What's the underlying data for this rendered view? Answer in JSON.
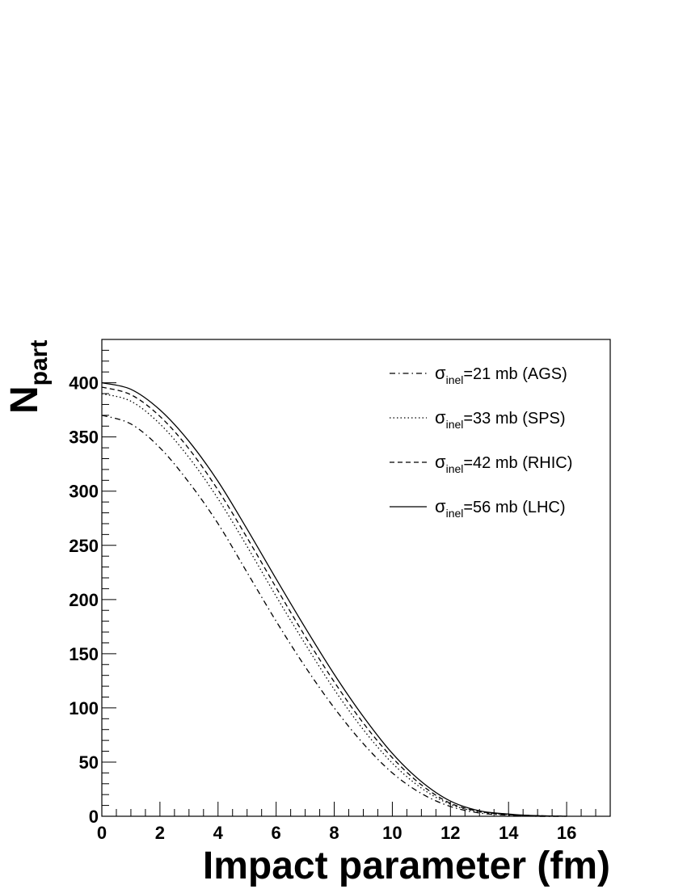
{
  "chart_data": {
    "type": "line",
    "xlabel": "Impact parameter (fm)",
    "ylabel": {
      "main": "N",
      "sub": "part"
    },
    "xlim": [
      0,
      17.5
    ],
    "ylim": [
      0,
      440
    ],
    "x_ticks": [
      0,
      2,
      4,
      6,
      8,
      10,
      12,
      14,
      16
    ],
    "y_ticks": [
      0,
      50,
      100,
      150,
      200,
      250,
      300,
      350,
      400
    ],
    "legend_position": "top-right",
    "series": [
      {
        "name": "σinel=21 mb (AGS)",
        "legend": {
          "sym": "σ",
          "sub": "inel",
          "rest": "=21 mb (AGS)"
        },
        "dash": "dashdot",
        "x": [
          0,
          1,
          2,
          3,
          4,
          5,
          6,
          7,
          8,
          9,
          10,
          11,
          12,
          13,
          14,
          15,
          16
        ],
        "y": [
          370,
          362,
          340,
          308,
          270,
          225,
          180,
          138,
          100,
          67,
          40,
          21,
          9,
          3,
          1,
          0,
          0
        ]
      },
      {
        "name": "σinel=33 mb (SPS)",
        "legend": {
          "sym": "σ",
          "sub": "inel",
          "rest": "=33 mb (SPS)"
        },
        "dash": "dotted",
        "x": [
          0,
          1,
          2,
          3,
          4,
          5,
          6,
          7,
          8,
          9,
          10,
          11,
          12,
          13,
          14,
          15,
          16
        ],
        "y": [
          390,
          383,
          362,
          331,
          293,
          249,
          203,
          159,
          117,
          80,
          49,
          26,
          11,
          4,
          1.5,
          0.5,
          0
        ]
      },
      {
        "name": "σinel=42 mb (RHIC)",
        "legend": {
          "sym": "σ",
          "sub": "inel",
          "rest": "=42 mb (RHIC)"
        },
        "dash": "dashed",
        "x": [
          0,
          1,
          2,
          3,
          4,
          5,
          6,
          7,
          8,
          9,
          10,
          11,
          12,
          13,
          14,
          15,
          16
        ],
        "y": [
          396,
          389,
          369,
          339,
          301,
          257,
          211,
          166,
          124,
          86,
          54,
          29,
          12,
          4.5,
          1.5,
          0.5,
          0
        ]
      },
      {
        "name": "σinel=56 mb (LHC)",
        "legend": {
          "sym": "σ",
          "sub": "inel",
          "rest": "=56 mb (LHC)"
        },
        "dash": "solid",
        "x": [
          0,
          1,
          2,
          3,
          4,
          5,
          6,
          7,
          8,
          9,
          10,
          11,
          12,
          13,
          14,
          15,
          16
        ],
        "y": [
          400,
          394,
          375,
          346,
          309,
          265,
          219,
          174,
          131,
          92,
          58,
          32,
          14,
          5,
          2,
          0.5,
          0
        ]
      }
    ]
  }
}
